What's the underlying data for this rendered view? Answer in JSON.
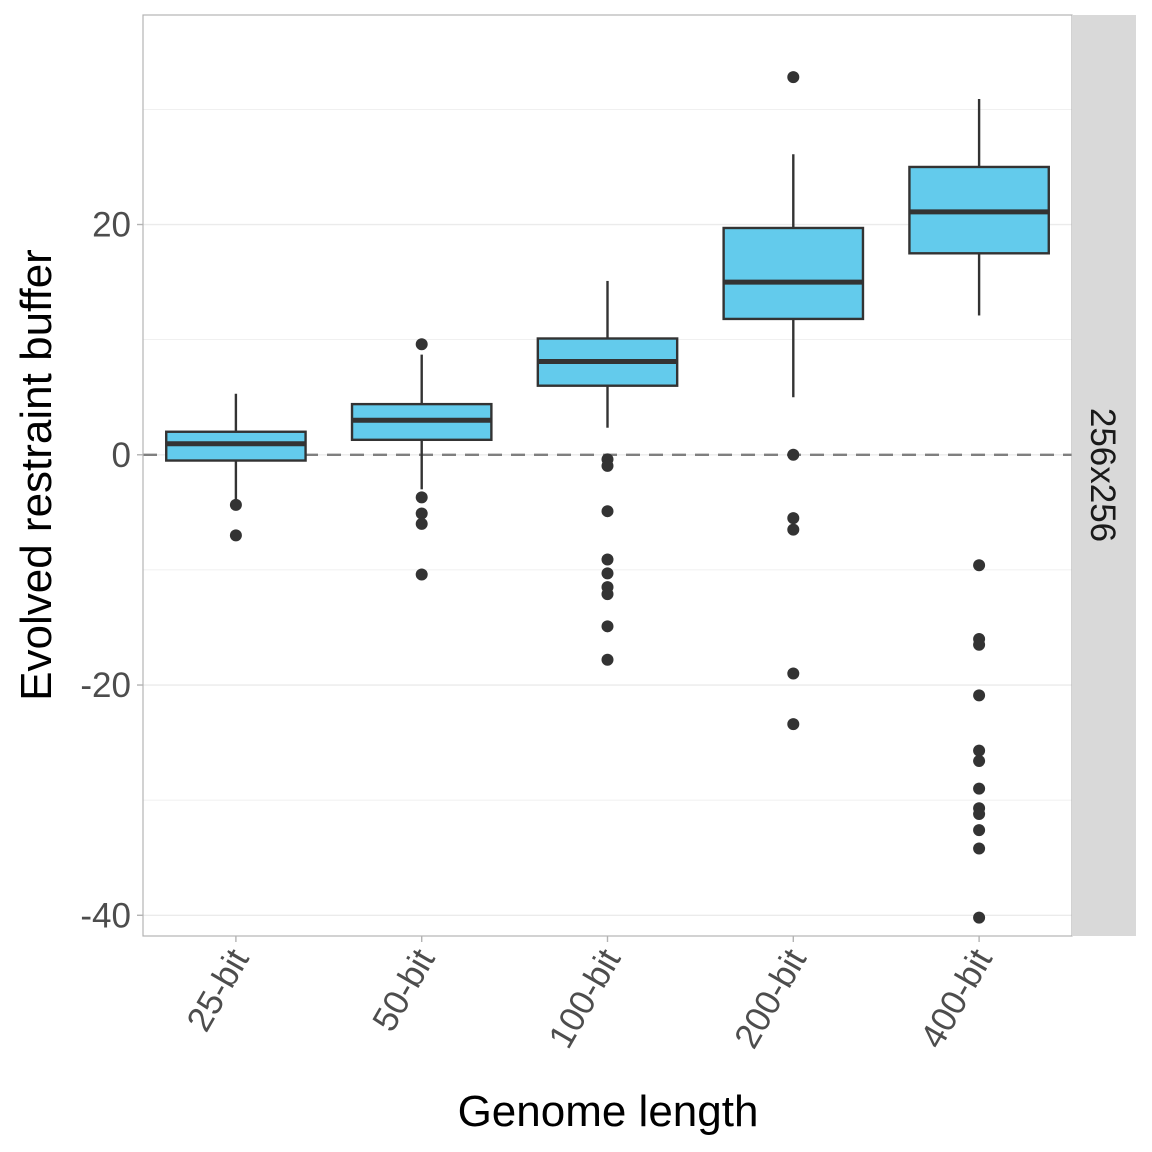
{
  "chart_data": {
    "type": "boxplot",
    "title": "",
    "xlabel": "Genome length",
    "ylabel": "Evolved restraint buffer",
    "facet_label": "256x256",
    "ylim": [
      -41.8,
      38.2
    ],
    "yticks": [
      -40,
      -20,
      0,
      20
    ],
    "ytick_labels": [
      "-40",
      "-20",
      "0",
      "20"
    ],
    "reference_line": 0,
    "grid": true,
    "legend": "none",
    "colors": {
      "fill": "#63cbec",
      "stroke": "#333333",
      "reference": "#7f7f7f",
      "strip": "#d9d9d9",
      "grid": "#ebebeb"
    },
    "categories": [
      "25-bit",
      "50-bit",
      "100-bit",
      "200-bit",
      "400-bit"
    ],
    "boxes": [
      {
        "category": "25-bit",
        "whisker_low": -3.9,
        "q1": -0.5,
        "median": 0.96,
        "q3": 2.0,
        "whisker_high": 5.3,
        "outliers": [
          -4.35,
          -7.0
        ]
      },
      {
        "category": "50-bit",
        "whisker_low": -3.0,
        "q1": 1.3,
        "median": 3.0,
        "q3": 4.4,
        "whisker_high": 8.7,
        "outliers": [
          9.6,
          -3.7,
          -5.1,
          -6.0,
          -10.4
        ]
      },
      {
        "category": "100-bit",
        "whisker_low": 2.35,
        "q1": 6.0,
        "median": 8.1,
        "q3": 10.1,
        "whisker_high": 15.1,
        "outliers": [
          -0.4,
          -0.96,
          -4.9,
          -9.1,
          -10.3,
          -11.5,
          -12.1,
          -14.9,
          -17.8
        ]
      },
      {
        "category": "200-bit",
        "whisker_low": 5.0,
        "q1": 11.8,
        "median": 15.0,
        "q3": 19.7,
        "whisker_high": 26.1,
        "outliers": [
          32.8,
          0.0,
          -5.5,
          -6.5,
          -19.0,
          -23.4
        ]
      },
      {
        "category": "400-bit",
        "whisker_low": 12.1,
        "q1": 17.5,
        "median": 21.1,
        "q3": 25.0,
        "whisker_high": 30.9,
        "outliers": [
          -9.6,
          -16.0,
          -16.5,
          -20.9,
          -25.7,
          -26.6,
          -29.0,
          -30.7,
          -31.2,
          -32.6,
          -34.2,
          -40.2
        ]
      }
    ]
  }
}
